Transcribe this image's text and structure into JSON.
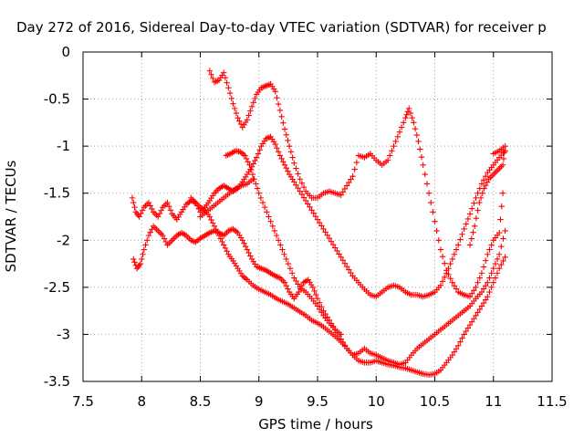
{
  "chart_data": {
    "type": "scatter",
    "title": "Day 272 of 2016, Sidereal Day-to-day VTEC variation (SDTVAR) for receiver p",
    "xlabel": "GPS time / hours",
    "ylabel": "SDTVAR / TECUs",
    "xlim": [
      7.5,
      11.5
    ],
    "ylim": [
      -3.5,
      0
    ],
    "xticks": [
      7.5,
      8,
      8.5,
      9,
      9.5,
      10,
      10.5,
      11,
      11.5
    ],
    "yticks": [
      0,
      -0.5,
      -1,
      -1.5,
      -2,
      -2.5,
      -3,
      -3.5
    ],
    "xtick_labels": [
      "7.5",
      "8",
      "8.5",
      "9",
      "9.5",
      "10",
      "10.5",
      "11",
      "11.5"
    ],
    "ytick_labels": [
      "0",
      "-0.5",
      "-1",
      "-1.5",
      "-2",
      "-2.5",
      "-3",
      "-3.5"
    ],
    "grid": true,
    "marker": "+",
    "color": "#ff0000",
    "series": [
      {
        "points": [
          [
            7.92,
            -1.55
          ],
          [
            7.95,
            -1.7
          ],
          [
            7.98,
            -1.75
          ],
          [
            8.02,
            -1.65
          ],
          [
            8.06,
            -1.6
          ],
          [
            8.1,
            -1.7
          ],
          [
            8.14,
            -1.75
          ],
          [
            8.18,
            -1.65
          ],
          [
            8.22,
            -1.6
          ],
          [
            8.26,
            -1.72
          ],
          [
            8.3,
            -1.78
          ],
          [
            8.34,
            -1.7
          ],
          [
            8.38,
            -1.62
          ],
          [
            8.42,
            -1.58
          ],
          [
            8.46,
            -1.6
          ],
          [
            8.5,
            -1.65
          ],
          [
            8.54,
            -1.68
          ],
          [
            8.58,
            -1.75
          ],
          [
            8.62,
            -1.85
          ],
          [
            8.66,
            -1.95
          ],
          [
            8.7,
            -2.05
          ],
          [
            8.74,
            -2.15
          ],
          [
            8.78,
            -2.22
          ],
          [
            8.82,
            -2.3
          ],
          [
            8.86,
            -2.38
          ],
          [
            8.9,
            -2.42
          ],
          [
            8.95,
            -2.48
          ],
          [
            9.0,
            -2.52
          ],
          [
            9.05,
            -2.55
          ],
          [
            9.1,
            -2.58
          ],
          [
            9.15,
            -2.62
          ],
          [
            9.2,
            -2.65
          ],
          [
            9.25,
            -2.68
          ],
          [
            9.3,
            -2.72
          ],
          [
            9.35,
            -2.76
          ],
          [
            9.4,
            -2.8
          ],
          [
            9.45,
            -2.85
          ],
          [
            9.5,
            -2.88
          ],
          [
            9.55,
            -2.92
          ],
          [
            9.6,
            -2.97
          ],
          [
            9.65,
            -3.02
          ],
          [
            9.7,
            -3.08
          ],
          [
            9.75,
            -3.15
          ],
          [
            9.8,
            -3.22
          ],
          [
            9.85,
            -3.28
          ],
          [
            9.9,
            -3.3
          ],
          [
            9.95,
            -3.3
          ],
          [
            10.0,
            -3.28
          ],
          [
            10.05,
            -3.3
          ],
          [
            10.1,
            -3.32
          ],
          [
            10.15,
            -3.33
          ],
          [
            10.2,
            -3.35
          ],
          [
            10.25,
            -3.36
          ],
          [
            10.3,
            -3.38
          ],
          [
            10.35,
            -3.4
          ],
          [
            10.4,
            -3.42
          ],
          [
            10.45,
            -3.43
          ],
          [
            10.5,
            -3.42
          ],
          [
            10.55,
            -3.38
          ],
          [
            10.6,
            -3.3
          ],
          [
            10.65,
            -3.22
          ],
          [
            10.7,
            -3.12
          ],
          [
            10.75,
            -3.0
          ],
          [
            10.8,
            -2.9
          ],
          [
            10.85,
            -2.8
          ],
          [
            10.9,
            -2.7
          ],
          [
            10.95,
            -2.6
          ],
          [
            11.0,
            -2.45
          ],
          [
            11.05,
            -2.3
          ],
          [
            11.1,
            -2.18
          ]
        ]
      },
      {
        "points": [
          [
            7.93,
            -2.2
          ],
          [
            7.96,
            -2.3
          ],
          [
            7.99,
            -2.25
          ],
          [
            8.02,
            -2.1
          ],
          [
            8.06,
            -1.95
          ],
          [
            8.1,
            -1.85
          ],
          [
            8.14,
            -1.9
          ],
          [
            8.18,
            -1.95
          ],
          [
            8.22,
            -2.05
          ],
          [
            8.26,
            -2.0
          ],
          [
            8.3,
            -1.95
          ],
          [
            8.34,
            -1.92
          ],
          [
            8.38,
            -1.95
          ],
          [
            8.42,
            -2.0
          ],
          [
            8.46,
            -2.02
          ],
          [
            8.5,
            -1.98
          ],
          [
            8.54,
            -1.95
          ],
          [
            8.58,
            -1.92
          ],
          [
            8.62,
            -1.9
          ],
          [
            8.66,
            -1.92
          ],
          [
            8.7,
            -1.95
          ],
          [
            8.74,
            -1.9
          ],
          [
            8.78,
            -1.88
          ],
          [
            8.82,
            -1.92
          ],
          [
            8.86,
            -2.0
          ],
          [
            8.9,
            -2.1
          ],
          [
            8.94,
            -2.2
          ],
          [
            8.98,
            -2.28
          ],
          [
            9.02,
            -2.3
          ],
          [
            9.06,
            -2.32
          ],
          [
            9.1,
            -2.35
          ],
          [
            9.14,
            -2.38
          ],
          [
            9.18,
            -2.4
          ],
          [
            9.22,
            -2.45
          ],
          [
            9.26,
            -2.55
          ],
          [
            9.3,
            -2.62
          ],
          [
            9.34,
            -2.55
          ],
          [
            9.38,
            -2.45
          ],
          [
            9.42,
            -2.42
          ],
          [
            9.46,
            -2.5
          ],
          [
            9.5,
            -2.62
          ],
          [
            9.55,
            -2.75
          ],
          [
            9.6,
            -2.85
          ],
          [
            9.65,
            -2.95
          ],
          [
            9.7,
            -3.05
          ],
          [
            9.75,
            -3.15
          ],
          [
            9.8,
            -3.22
          ],
          [
            9.85,
            -3.2
          ],
          [
            9.9,
            -3.15
          ],
          [
            9.95,
            -3.2
          ],
          [
            10.0,
            -3.22
          ],
          [
            10.05,
            -3.25
          ],
          [
            10.1,
            -3.28
          ],
          [
            10.15,
            -3.3
          ],
          [
            10.2,
            -3.32
          ],
          [
            10.25,
            -3.3
          ],
          [
            10.3,
            -3.22
          ],
          [
            10.35,
            -3.15
          ],
          [
            10.4,
            -3.1
          ],
          [
            10.45,
            -3.05
          ],
          [
            10.5,
            -3.0
          ],
          [
            10.55,
            -2.95
          ],
          [
            10.6,
            -2.9
          ],
          [
            10.65,
            -2.85
          ],
          [
            10.7,
            -2.8
          ],
          [
            10.75,
            -2.75
          ],
          [
            10.8,
            -2.7
          ],
          [
            10.85,
            -2.62
          ],
          [
            10.9,
            -2.55
          ],
          [
            10.95,
            -2.45
          ],
          [
            11.0,
            -2.3
          ],
          [
            11.05,
            -2.15
          ],
          [
            11.1,
            -1.9
          ]
        ]
      },
      {
        "points": [
          [
            8.42,
            -1.55
          ],
          [
            8.46,
            -1.6
          ],
          [
            8.5,
            -1.7
          ],
          [
            8.54,
            -1.65
          ],
          [
            8.58,
            -1.58
          ],
          [
            8.62,
            -1.5
          ],
          [
            8.66,
            -1.45
          ],
          [
            8.7,
            -1.42
          ],
          [
            8.74,
            -1.45
          ],
          [
            8.78,
            -1.48
          ],
          [
            8.82,
            -1.45
          ],
          [
            8.86,
            -1.38
          ],
          [
            8.9,
            -1.3
          ],
          [
            8.94,
            -1.22
          ],
          [
            8.98,
            -1.12
          ],
          [
            9.02,
            -1.0
          ],
          [
            9.06,
            -0.92
          ],
          [
            9.1,
            -0.9
          ],
          [
            9.14,
            -0.98
          ],
          [
            9.18,
            -1.1
          ],
          [
            9.22,
            -1.2
          ],
          [
            9.26,
            -1.3
          ],
          [
            9.3,
            -1.38
          ],
          [
            9.35,
            -1.48
          ],
          [
            9.4,
            -1.58
          ],
          [
            9.45,
            -1.68
          ],
          [
            9.5,
            -1.78
          ],
          [
            9.55,
            -1.88
          ],
          [
            9.6,
            -1.98
          ],
          [
            9.65,
            -2.08
          ],
          [
            9.7,
            -2.18
          ],
          [
            9.75,
            -2.28
          ],
          [
            9.8,
            -2.38
          ],
          [
            9.85,
            -2.45
          ],
          [
            9.9,
            -2.52
          ],
          [
            9.95,
            -2.58
          ],
          [
            10.0,
            -2.6
          ],
          [
            10.05,
            -2.55
          ],
          [
            10.1,
            -2.5
          ],
          [
            10.15,
            -2.48
          ],
          [
            10.2,
            -2.5
          ],
          [
            10.25,
            -2.55
          ],
          [
            10.3,
            -2.58
          ],
          [
            10.35,
            -2.58
          ],
          [
            10.4,
            -2.6
          ],
          [
            10.45,
            -2.58
          ],
          [
            10.5,
            -2.55
          ],
          [
            10.55,
            -2.48
          ],
          [
            10.6,
            -2.35
          ],
          [
            10.65,
            -2.2
          ],
          [
            10.7,
            -2.05
          ],
          [
            10.75,
            -1.88
          ],
          [
            10.8,
            -1.72
          ],
          [
            10.85,
            -1.55
          ],
          [
            10.9,
            -1.4
          ],
          [
            10.95,
            -1.28
          ],
          [
            11.0,
            -1.2
          ],
          [
            11.05,
            -1.12
          ],
          [
            11.1,
            -1.05
          ]
        ]
      },
      {
        "points": [
          [
            8.58,
            -0.2
          ],
          [
            8.62,
            -0.32
          ],
          [
            8.66,
            -0.3
          ],
          [
            8.7,
            -0.22
          ],
          [
            8.74,
            -0.38
          ],
          [
            8.78,
            -0.55
          ],
          [
            8.82,
            -0.7
          ],
          [
            8.86,
            -0.8
          ],
          [
            8.9,
            -0.72
          ],
          [
            8.94,
            -0.58
          ],
          [
            8.98,
            -0.45
          ],
          [
            9.02,
            -0.38
          ],
          [
            9.06,
            -0.36
          ],
          [
            9.1,
            -0.34
          ],
          [
            9.14,
            -0.42
          ],
          [
            9.18,
            -0.62
          ],
          [
            9.22,
            -0.82
          ],
          [
            9.26,
            -1.0
          ],
          [
            9.3,
            -1.18
          ],
          [
            9.35,
            -1.35
          ],
          [
            9.4,
            -1.48
          ],
          [
            9.45,
            -1.55
          ],
          [
            9.5,
            -1.55
          ],
          [
            9.55,
            -1.5
          ],
          [
            9.6,
            -1.48
          ],
          [
            9.65,
            -1.5
          ],
          [
            9.7,
            -1.52
          ],
          [
            9.75,
            -1.42
          ],
          [
            9.8,
            -1.32
          ],
          [
            9.85,
            -1.1
          ],
          [
            9.9,
            -1.12
          ],
          [
            9.95,
            -1.08
          ],
          [
            10.0,
            -1.15
          ],
          [
            10.05,
            -1.2
          ],
          [
            10.1,
            -1.15
          ],
          [
            10.15,
            -1.0
          ],
          [
            10.2,
            -0.85
          ],
          [
            10.25,
            -0.7
          ],
          [
            10.28,
            -0.6
          ],
          [
            10.32,
            -0.75
          ],
          [
            10.36,
            -0.95
          ],
          [
            10.4,
            -1.2
          ],
          [
            10.45,
            -1.5
          ],
          [
            10.5,
            -1.8
          ],
          [
            10.55,
            -2.1
          ],
          [
            10.6,
            -2.32
          ],
          [
            10.65,
            -2.45
          ],
          [
            10.7,
            -2.55
          ],
          [
            10.75,
            -2.58
          ],
          [
            10.8,
            -2.6
          ],
          [
            10.85,
            -2.5
          ],
          [
            10.9,
            -2.35
          ],
          [
            10.95,
            -2.15
          ],
          [
            11.0,
            -2.0
          ],
          [
            11.05,
            -1.92
          ],
          [
            11.08,
            -1.5
          ]
        ]
      },
      {
        "points": [
          [
            8.72,
            -1.1
          ],
          [
            8.76,
            -1.08
          ],
          [
            8.8,
            -1.05
          ],
          [
            8.84,
            -1.06
          ],
          [
            8.88,
            -1.1
          ],
          [
            8.92,
            -1.2
          ],
          [
            8.96,
            -1.35
          ],
          [
            9.0,
            -1.5
          ],
          [
            9.05,
            -1.65
          ],
          [
            9.1,
            -1.8
          ],
          [
            9.15,
            -1.95
          ],
          [
            9.2,
            -2.1
          ],
          [
            9.25,
            -2.25
          ],
          [
            9.3,
            -2.4
          ],
          [
            9.35,
            -2.5
          ],
          [
            9.4,
            -2.55
          ],
          [
            9.45,
            -2.62
          ],
          [
            9.5,
            -2.7
          ],
          [
            9.55,
            -2.8
          ],
          [
            9.6,
            -2.88
          ],
          [
            9.65,
            -2.95
          ],
          [
            9.7,
            -3.0
          ]
        ]
      },
      {
        "points": [
          [
            8.5,
            -1.75
          ],
          [
            8.55,
            -1.7
          ],
          [
            8.6,
            -1.65
          ],
          [
            8.65,
            -1.6
          ],
          [
            8.7,
            -1.55
          ],
          [
            8.75,
            -1.5
          ],
          [
            8.8,
            -1.45
          ],
          [
            8.85,
            -1.42
          ],
          [
            8.9,
            -1.4
          ],
          [
            8.95,
            -1.35
          ]
        ]
      },
      {
        "points": [
          [
            10.8,
            -2.05
          ],
          [
            10.84,
            -1.85
          ],
          [
            10.88,
            -1.6
          ],
          [
            10.92,
            -1.45
          ],
          [
            10.96,
            -1.35
          ],
          [
            11.0,
            -1.3
          ],
          [
            11.04,
            -1.25
          ],
          [
            11.08,
            -1.2
          ],
          [
            11.1,
            -1.0
          ],
          [
            11.05,
            -1.05
          ],
          [
            11.0,
            -1.08
          ]
        ]
      }
    ]
  }
}
